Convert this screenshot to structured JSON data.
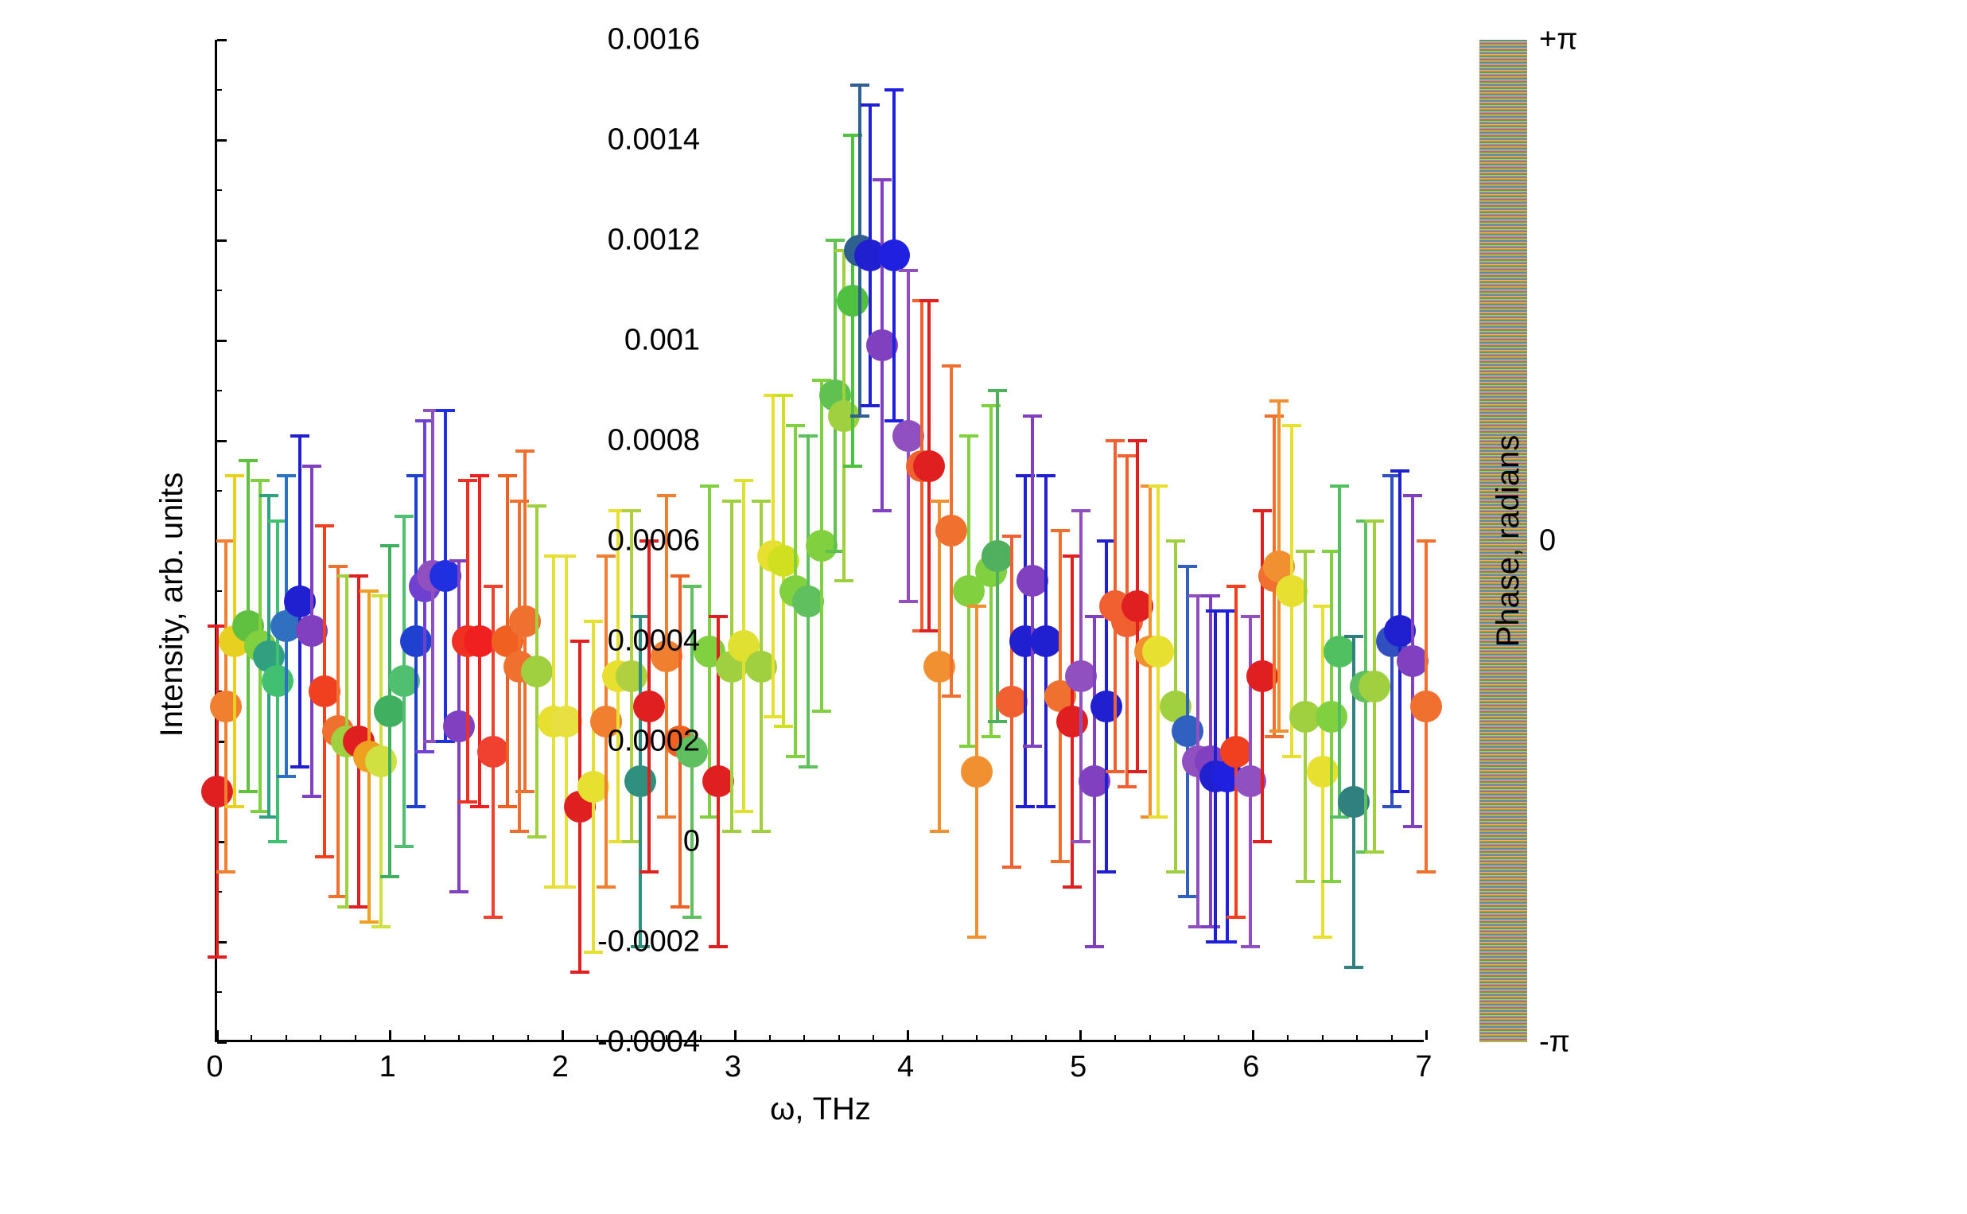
{
  "chart": {
    "type": "scatter",
    "xlabel": "ω, THz",
    "ylabel": "Intensity, arb. units",
    "colorbar_label": "Phase, radians",
    "label_fontsize": 40,
    "tick_fontsize": 38,
    "background_color": "#ffffff",
    "marker_radius": 20,
    "error_bar_width": 4,
    "error_cap_width": 24,
    "xlim": [
      0,
      7
    ],
    "ylim": [
      -0.0004,
      0.0016
    ],
    "xtick_step": 1,
    "ytick_step": 0.0002,
    "xticks": [
      0,
      1,
      2,
      3,
      4,
      5,
      6,
      7
    ],
    "yticks": [
      -0.0004,
      -0.0002,
      0,
      0.0002,
      0.0004,
      0.0006,
      0.0008,
      0.001,
      0.0012,
      0.0014,
      0.0016
    ],
    "ytick_labels": [
      "-0.0004",
      "-0.0002",
      " 0",
      " 0.0002",
      " 0.0004",
      " 0.0006",
      " 0.0008",
      " 0.001",
      " 0.0012",
      " 0.0014",
      " 0.0016"
    ],
    "colorbar_ticks": [
      "+π",
      "0",
      "-π"
    ],
    "colorbar_tick_positions": [
      0,
      0.5,
      1
    ],
    "colorbar_gradient": [
      {
        "stop": 0,
        "color": "#9966cc"
      },
      {
        "stop": 0.15,
        "color": "#7070e0"
      },
      {
        "stop": 0.28,
        "color": "#4090d0"
      },
      {
        "stop": 0.4,
        "color": "#40c080"
      },
      {
        "stop": 0.5,
        "color": "#80d040"
      },
      {
        "stop": 0.58,
        "color": "#d0e030"
      },
      {
        "stop": 0.68,
        "color": "#f0d020"
      },
      {
        "stop": 0.78,
        "color": "#f0a030"
      },
      {
        "stop": 0.88,
        "color": "#f07040"
      },
      {
        "stop": 1.0,
        "color": "#f08080"
      }
    ],
    "data": [
      {
        "x": 0.0,
        "y": 0.0001,
        "err": 0.00033,
        "color": "#e02020"
      },
      {
        "x": 0.05,
        "y": 0.00027,
        "err": 0.00033,
        "color": "#f08030"
      },
      {
        "x": 0.1,
        "y": 0.0004,
        "err": 0.00033,
        "color": "#e8d020"
      },
      {
        "x": 0.18,
        "y": 0.00043,
        "err": 0.00033,
        "color": "#60c040"
      },
      {
        "x": 0.25,
        "y": 0.00039,
        "err": 0.00033,
        "color": "#80d040"
      },
      {
        "x": 0.3,
        "y": 0.00037,
        "err": 0.00032,
        "color": "#30a080"
      },
      {
        "x": 0.35,
        "y": 0.00032,
        "err": 0.00032,
        "color": "#40c070"
      },
      {
        "x": 0.4,
        "y": 0.00043,
        "err": 0.0003,
        "color": "#3070c0"
      },
      {
        "x": 0.48,
        "y": 0.00048,
        "err": 0.00033,
        "color": "#2020d0"
      },
      {
        "x": 0.55,
        "y": 0.00042,
        "err": 0.00033,
        "color": "#8040c0"
      },
      {
        "x": 0.62,
        "y": 0.0003,
        "err": 0.00033,
        "color": "#f04020"
      },
      {
        "x": 0.7,
        "y": 0.00022,
        "err": 0.00033,
        "color": "#f07030"
      },
      {
        "x": 0.75,
        "y": 0.0002,
        "err": 0.00033,
        "color": "#a0d040"
      },
      {
        "x": 0.82,
        "y": 0.0002,
        "err": 0.00033,
        "color": "#e02020"
      },
      {
        "x": 0.88,
        "y": 0.00017,
        "err": 0.00033,
        "color": "#f0a020"
      },
      {
        "x": 0.95,
        "y": 0.00016,
        "err": 0.00033,
        "color": "#d0e040"
      },
      {
        "x": 1.0,
        "y": 0.00026,
        "err": 0.00033,
        "color": "#40b060"
      },
      {
        "x": 1.08,
        "y": 0.00032,
        "err": 0.00033,
        "color": "#50c070"
      },
      {
        "x": 1.15,
        "y": 0.0004,
        "err": 0.00033,
        "color": "#2040d0"
      },
      {
        "x": 1.2,
        "y": 0.00051,
        "err": 0.00033,
        "color": "#7040d0"
      },
      {
        "x": 1.25,
        "y": 0.00053,
        "err": 0.00033,
        "color": "#9050c0"
      },
      {
        "x": 1.32,
        "y": 0.00053,
        "err": 0.00033,
        "color": "#2030e0"
      },
      {
        "x": 1.4,
        "y": 0.00023,
        "err": 0.00033,
        "color": "#8040c0"
      },
      {
        "x": 1.45,
        "y": 0.0004,
        "err": 0.00032,
        "color": "#f03020"
      },
      {
        "x": 1.52,
        "y": 0.0004,
        "err": 0.00033,
        "color": "#f02020"
      },
      {
        "x": 1.6,
        "y": 0.00018,
        "err": 0.00033,
        "color": "#f04030"
      },
      {
        "x": 1.68,
        "y": 0.0004,
        "err": 0.00033,
        "color": "#f06020"
      },
      {
        "x": 1.75,
        "y": 0.00035,
        "err": 0.00033,
        "color": "#f07030"
      },
      {
        "x": 1.78,
        "y": 0.00044,
        "err": 0.00034,
        "color": "#f07030"
      },
      {
        "x": 1.85,
        "y": 0.00034,
        "err": 0.00033,
        "color": "#a0d040"
      },
      {
        "x": 1.95,
        "y": 0.00024,
        "err": 0.00033,
        "color": "#e8e030"
      },
      {
        "x": 2.02,
        "y": 0.00024,
        "err": 0.00033,
        "color": "#e8e040"
      },
      {
        "x": 2.1,
        "y": 7e-05,
        "err": 0.00033,
        "color": "#e02020"
      },
      {
        "x": 2.18,
        "y": 0.00011,
        "err": 0.00033,
        "color": "#e8e030"
      },
      {
        "x": 2.25,
        "y": 0.00024,
        "err": 0.00033,
        "color": "#f08030"
      },
      {
        "x": 2.32,
        "y": 0.00033,
        "err": 0.00033,
        "color": "#e8e030"
      },
      {
        "x": 2.4,
        "y": 0.00033,
        "err": 0.00033,
        "color": "#b0d040"
      },
      {
        "x": 2.45,
        "y": 0.00012,
        "err": 0.00033,
        "color": "#309080"
      },
      {
        "x": 2.5,
        "y": 0.00027,
        "err": 0.00033,
        "color": "#e02020"
      },
      {
        "x": 2.6,
        "y": 0.00037,
        "err": 0.00032,
        "color": "#f08030"
      },
      {
        "x": 2.68,
        "y": 0.0002,
        "err": 0.00033,
        "color": "#f06020"
      },
      {
        "x": 2.75,
        "y": 0.00018,
        "err": 0.00033,
        "color": "#60c060"
      },
      {
        "x": 2.85,
        "y": 0.00038,
        "err": 0.00033,
        "color": "#80d040"
      },
      {
        "x": 2.9,
        "y": 0.00012,
        "err": 0.00033,
        "color": "#e02020"
      },
      {
        "x": 2.98,
        "y": 0.00035,
        "err": 0.00033,
        "color": "#a0d040"
      },
      {
        "x": 3.05,
        "y": 0.00039,
        "err": 0.00033,
        "color": "#e0e030"
      },
      {
        "x": 3.15,
        "y": 0.00035,
        "err": 0.00033,
        "color": "#a0d040"
      },
      {
        "x": 3.22,
        "y": 0.00057,
        "err": 0.00032,
        "color": "#e8e030"
      },
      {
        "x": 3.28,
        "y": 0.00056,
        "err": 0.00033,
        "color": "#d0e020"
      },
      {
        "x": 3.35,
        "y": 0.0005,
        "err": 0.00033,
        "color": "#80d040"
      },
      {
        "x": 3.42,
        "y": 0.00048,
        "err": 0.00033,
        "color": "#60c060"
      },
      {
        "x": 3.5,
        "y": 0.00059,
        "err": 0.00033,
        "color": "#80d040"
      },
      {
        "x": 3.58,
        "y": 0.00089,
        "err": 0.00031,
        "color": "#60c050"
      },
      {
        "x": 3.63,
        "y": 0.00085,
        "err": 0.00033,
        "color": "#a0d040"
      },
      {
        "x": 3.68,
        "y": 0.00108,
        "err": 0.00033,
        "color": "#50c040"
      },
      {
        "x": 3.72,
        "y": 0.00118,
        "err": 0.00033,
        "color": "#306090"
      },
      {
        "x": 3.78,
        "y": 0.00117,
        "err": 0.0003,
        "color": "#2020d0"
      },
      {
        "x": 3.85,
        "y": 0.00099,
        "err": 0.00033,
        "color": "#8040c0"
      },
      {
        "x": 3.92,
        "y": 0.00117,
        "err": 0.00033,
        "color": "#2020e0"
      },
      {
        "x": 4.0,
        "y": 0.00081,
        "err": 0.00033,
        "color": "#9050c0"
      },
      {
        "x": 4.08,
        "y": 0.00075,
        "err": 0.00033,
        "color": "#f06030"
      },
      {
        "x": 4.12,
        "y": 0.00075,
        "err": 0.00033,
        "color": "#e02020"
      },
      {
        "x": 4.18,
        "y": 0.00035,
        "err": 0.00033,
        "color": "#f09030"
      },
      {
        "x": 4.25,
        "y": 0.00062,
        "err": 0.00033,
        "color": "#f07030"
      },
      {
        "x": 4.35,
        "y": 0.0005,
        "err": 0.00031,
        "color": "#80d040"
      },
      {
        "x": 4.4,
        "y": 0.00014,
        "err": 0.00033,
        "color": "#f09030"
      },
      {
        "x": 4.48,
        "y": 0.00054,
        "err": 0.00033,
        "color": "#80d040"
      },
      {
        "x": 4.52,
        "y": 0.00057,
        "err": 0.00033,
        "color": "#50b060"
      },
      {
        "x": 4.6,
        "y": 0.00028,
        "err": 0.00033,
        "color": "#f06030"
      },
      {
        "x": 4.68,
        "y": 0.0004,
        "err": 0.00033,
        "color": "#2020d0"
      },
      {
        "x": 4.72,
        "y": 0.00052,
        "err": 0.00033,
        "color": "#8040c0"
      },
      {
        "x": 4.8,
        "y": 0.0004,
        "err": 0.00033,
        "color": "#2020d0"
      },
      {
        "x": 4.88,
        "y": 0.00029,
        "err": 0.00033,
        "color": "#f07030"
      },
      {
        "x": 4.95,
        "y": 0.00024,
        "err": 0.00033,
        "color": "#e02020"
      },
      {
        "x": 5.0,
        "y": 0.00033,
        "err": 0.00033,
        "color": "#9050c0"
      },
      {
        "x": 5.08,
        "y": 0.00012,
        "err": 0.00033,
        "color": "#8040c0"
      },
      {
        "x": 5.15,
        "y": 0.00027,
        "err": 0.00033,
        "color": "#2020d0"
      },
      {
        "x": 5.2,
        "y": 0.00047,
        "err": 0.00033,
        "color": "#f06030"
      },
      {
        "x": 5.27,
        "y": 0.00044,
        "err": 0.00033,
        "color": "#f06030"
      },
      {
        "x": 5.33,
        "y": 0.00047,
        "err": 0.00033,
        "color": "#e02020"
      },
      {
        "x": 5.4,
        "y": 0.00038,
        "err": 0.00033,
        "color": "#f09030"
      },
      {
        "x": 5.45,
        "y": 0.00038,
        "err": 0.00033,
        "color": "#e8e030"
      },
      {
        "x": 5.55,
        "y": 0.00027,
        "err": 0.00033,
        "color": "#a0d040"
      },
      {
        "x": 5.62,
        "y": 0.00022,
        "err": 0.00033,
        "color": "#3060c0"
      },
      {
        "x": 5.68,
        "y": 0.00016,
        "err": 0.00033,
        "color": "#9050c0"
      },
      {
        "x": 5.75,
        "y": 0.00016,
        "err": 0.00033,
        "color": "#8040c0"
      },
      {
        "x": 5.78,
        "y": 0.00013,
        "err": 0.00033,
        "color": "#2020d0"
      },
      {
        "x": 5.85,
        "y": 0.00013,
        "err": 0.00033,
        "color": "#2020e0"
      },
      {
        "x": 5.9,
        "y": 0.00018,
        "err": 0.00033,
        "color": "#f04020"
      },
      {
        "x": 5.98,
        "y": 0.00012,
        "err": 0.00033,
        "color": "#9050c0"
      },
      {
        "x": 6.05,
        "y": 0.00033,
        "err": 0.00033,
        "color": "#e02020"
      },
      {
        "x": 6.12,
        "y": 0.00053,
        "err": 0.00032,
        "color": "#f07030"
      },
      {
        "x": 6.15,
        "y": 0.00055,
        "err": 0.00033,
        "color": "#f09030"
      },
      {
        "x": 6.22,
        "y": 0.0005,
        "err": 0.00033,
        "color": "#e8e030"
      },
      {
        "x": 6.3,
        "y": 0.00025,
        "err": 0.00033,
        "color": "#a0d040"
      },
      {
        "x": 6.4,
        "y": 0.00014,
        "err": 0.00033,
        "color": "#e8e030"
      },
      {
        "x": 6.45,
        "y": 0.00025,
        "err": 0.00033,
        "color": "#80d040"
      },
      {
        "x": 6.5,
        "y": 0.00038,
        "err": 0.00033,
        "color": "#50c060"
      },
      {
        "x": 6.58,
        "y": 8e-05,
        "err": 0.00033,
        "color": "#308080"
      },
      {
        "x": 6.65,
        "y": 0.00031,
        "err": 0.00033,
        "color": "#60c060"
      },
      {
        "x": 6.7,
        "y": 0.00031,
        "err": 0.00033,
        "color": "#a0d040"
      },
      {
        "x": 6.8,
        "y": 0.0004,
        "err": 0.00033,
        "color": "#3050c0"
      },
      {
        "x": 6.85,
        "y": 0.00042,
        "err": 0.00032,
        "color": "#2020d0"
      },
      {
        "x": 6.92,
        "y": 0.00036,
        "err": 0.00033,
        "color": "#8040c0"
      },
      {
        "x": 7.0,
        "y": 0.00027,
        "err": 0.00033,
        "color": "#f07030"
      }
    ]
  }
}
